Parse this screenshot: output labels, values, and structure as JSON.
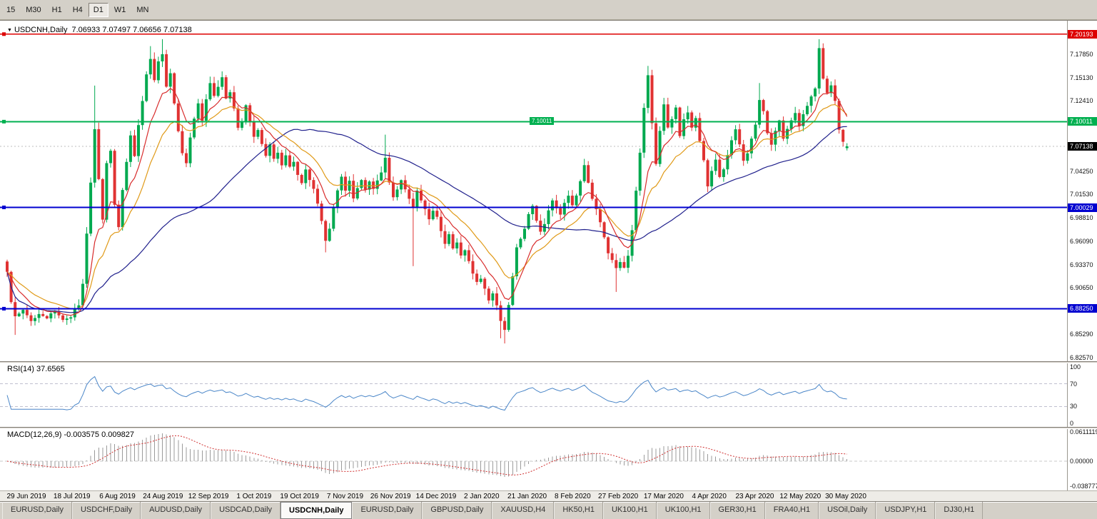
{
  "toolbar": {
    "timeframes": [
      "15",
      "M30",
      "H1",
      "H4",
      "D1",
      "W1",
      "MN"
    ],
    "active": "D1"
  },
  "chart": {
    "symbol": "USDCNH,Daily",
    "quote_line": "7.06933 7.07497 7.06656 7.07138",
    "rsi_header": "RSI(14) 37.6565",
    "macd_header": "MACD(12,26,9) -0.003575 0.009827"
  },
  "chart_data": {
    "type": "candlestick",
    "title": "USDCNH,Daily",
    "symbol": "USDCNH",
    "timeframe": "Daily",
    "ohlc_current": {
      "open": 7.06933,
      "high": 7.07497,
      "low": 7.06656,
      "close": 7.07138
    },
    "n_candles": 212,
    "price_axis": {
      "visible_top": 7.2117,
      "visible_bottom": 6.823,
      "ticks": [
        "7.17850",
        "7.15130",
        "7.12410",
        "7.04250",
        "7.01530",
        "6.98810",
        "6.96090",
        "6.93370",
        "6.90650",
        "6.85290",
        "6.82570"
      ]
    },
    "x_axis_dates": [
      "29 Jun 2019",
      "18 Jul 2019",
      "6 Aug 2019",
      "24 Aug 2019",
      "12 Sep 2019",
      "1 Oct 2019",
      "19 Oct 2019",
      "7 Nov 2019",
      "26 Nov 2019",
      "14 Dec 2019",
      "2 Jan 2020",
      "21 Jan 2020",
      "8 Feb 2020",
      "27 Feb 2020",
      "17 Mar 2020",
      "4 Apr 2020",
      "23 Apr 2020",
      "12 May 2020",
      "30 May 2020"
    ],
    "horizontal_lines": [
      {
        "price": 7.20193,
        "color": "#dd0000",
        "label": "7.20193",
        "mid_tag": false
      },
      {
        "price": 7.10011,
        "color": "#00b050",
        "label": "7.10011",
        "mid_tag": true
      },
      {
        "price": 7.00029,
        "color": "#0000d0",
        "label": "7.00029",
        "mid_tag": false
      },
      {
        "price": 6.8825,
        "color": "#0000d0",
        "label": "6.88250",
        "mid_tag": false
      }
    ],
    "current_price_tag": {
      "price": 7.07138,
      "label": "7.07138",
      "bg": "#000000"
    },
    "candle_colors": {
      "up": "#00a94f",
      "down": "#e03232"
    },
    "moving_averages": [
      {
        "type": "sma",
        "period": 52,
        "color": "#20208c",
        "name": "slow-ma"
      },
      {
        "type": "ema",
        "period": 18,
        "color": "#e09a18",
        "name": "medium-ma"
      },
      {
        "type": "ema",
        "period": 9,
        "color": "#d82c2c",
        "name": "fast-ma"
      }
    ],
    "rsi": {
      "name": "RSI",
      "period": 14,
      "value": 37.6565,
      "levels": [
        100,
        70,
        30,
        0
      ],
      "line_color": "#4a86c8"
    },
    "macd": {
      "name": "MACD",
      "fast": 12,
      "slow": 26,
      "signal": 9,
      "macd_value": -0.003575,
      "signal_value": 0.009827,
      "scale_labels": [
        "0.0611119",
        "0.00000",
        "-0.038777"
      ],
      "histogram_color": "#9b9b9b",
      "signal_color": "#d03030"
    },
    "close_waypoints": [
      [
        0,
        6.925
      ],
      [
        1,
        6.89
      ],
      [
        2,
        6.872
      ],
      [
        4,
        6.88
      ],
      [
        6,
        6.868
      ],
      [
        8,
        6.878
      ],
      [
        10,
        6.872
      ],
      [
        12,
        6.878
      ],
      [
        14,
        6.87
      ],
      [
        16,
        6.874
      ],
      [
        17,
        6.88
      ],
      [
        18,
        6.885
      ],
      [
        19,
        6.91
      ],
      [
        20,
        6.97
      ],
      [
        21,
        7.03
      ],
      [
        22,
        7.09
      ],
      [
        23,
        7.035
      ],
      [
        24,
        6.985
      ],
      [
        25,
        7.05
      ],
      [
        26,
        7.065
      ],
      [
        27,
        7.005
      ],
      [
        28,
        6.978
      ],
      [
        29,
        7.02
      ],
      [
        30,
        7.055
      ],
      [
        31,
        7.085
      ],
      [
        32,
        7.06
      ],
      [
        33,
        7.095
      ],
      [
        34,
        7.125
      ],
      [
        35,
        7.155
      ],
      [
        36,
        7.175
      ],
      [
        37,
        7.148
      ],
      [
        38,
        7.17
      ],
      [
        39,
        7.178
      ],
      [
        40,
        7.14
      ],
      [
        41,
        7.155
      ],
      [
        42,
        7.12
      ],
      [
        43,
        7.09
      ],
      [
        44,
        7.062
      ],
      [
        45,
        7.052
      ],
      [
        46,
        7.08
      ],
      [
        47,
        7.105
      ],
      [
        48,
        7.12
      ],
      [
        49,
        7.102
      ],
      [
        50,
        7.128
      ],
      [
        51,
        7.145
      ],
      [
        52,
        7.132
      ],
      [
        53,
        7.142
      ],
      [
        54,
        7.15
      ],
      [
        55,
        7.128
      ],
      [
        56,
        7.135
      ],
      [
        57,
        7.115
      ],
      [
        58,
        7.092
      ],
      [
        59,
        7.1
      ],
      [
        60,
        7.118
      ],
      [
        61,
        7.1
      ],
      [
        62,
        7.082
      ],
      [
        63,
        7.092
      ],
      [
        64,
        7.075
      ],
      [
        65,
        7.062
      ],
      [
        66,
        7.072
      ],
      [
        67,
        7.055
      ],
      [
        68,
        7.065
      ],
      [
        69,
        7.048
      ],
      [
        70,
        7.062
      ],
      [
        71,
        7.048
      ],
      [
        72,
        7.055
      ],
      [
        73,
        7.04
      ],
      [
        74,
        7.03
      ],
      [
        75,
        7.045
      ],
      [
        76,
        7.032
      ],
      [
        77,
        7.02
      ],
      [
        78,
        7.005
      ],
      [
        79,
        6.985
      ],
      [
        80,
        6.962
      ],
      [
        81,
        6.975
      ],
      [
        82,
        7.0
      ],
      [
        83,
        7.022
      ],
      [
        84,
        7.035
      ],
      [
        85,
        7.02
      ],
      [
        86,
        7.03
      ],
      [
        87,
        7.012
      ],
      [
        88,
        7.022
      ],
      [
        89,
        7.032
      ],
      [
        90,
        7.02
      ],
      [
        91,
        7.03
      ],
      [
        92,
        7.022
      ],
      [
        93,
        7.032
      ],
      [
        94,
        7.042
      ],
      [
        95,
        7.06
      ],
      [
        96,
        7.03
      ],
      [
        97,
        7.012
      ],
      [
        98,
        7.022
      ],
      [
        99,
        7.03
      ],
      [
        100,
        7.02
      ],
      [
        101,
        7.01
      ],
      [
        102,
        7.002
      ],
      [
        103,
        7.018
      ],
      [
        104,
        7.008
      ],
      [
        105,
        6.998
      ],
      [
        106,
        6.988
      ],
      [
        107,
        6.998
      ],
      [
        108,
        6.988
      ],
      [
        109,
        6.972
      ],
      [
        110,
        6.958
      ],
      [
        111,
        6.968
      ],
      [
        112,
        6.952
      ],
      [
        113,
        6.958
      ],
      [
        114,
        6.945
      ],
      [
        115,
        6.952
      ],
      [
        116,
        6.938
      ],
      [
        117,
        6.925
      ],
      [
        118,
        6.912
      ],
      [
        119,
        6.918
      ],
      [
        120,
        6.905
      ],
      [
        121,
        6.892
      ],
      [
        122,
        6.902
      ],
      [
        123,
        6.888
      ],
      [
        124,
        6.868
      ],
      [
        125,
        6.858
      ],
      [
        126,
        6.885
      ],
      [
        127,
        6.922
      ],
      [
        128,
        6.952
      ],
      [
        129,
        6.962
      ],
      [
        130,
        6.975
      ],
      [
        131,
        6.992
      ],
      [
        132,
        7.002
      ],
      [
        133,
        6.985
      ],
      [
        134,
        6.972
      ],
      [
        135,
        6.982
      ],
      [
        136,
        6.998
      ],
      [
        137,
        7.01
      ],
      [
        138,
        7.0
      ],
      [
        139,
        6.99
      ],
      [
        140,
        7.005
      ],
      [
        141,
        7.015
      ],
      [
        142,
        7.002
      ],
      [
        143,
        7.015
      ],
      [
        144,
        7.03
      ],
      [
        145,
        7.048
      ],
      [
        146,
        7.03
      ],
      [
        147,
        7.012
      ],
      [
        148,
        6.998
      ],
      [
        149,
        6.982
      ],
      [
        150,
        6.965
      ],
      [
        151,
        6.948
      ],
      [
        152,
        6.938
      ],
      [
        153,
        6.928
      ],
      [
        154,
        6.938
      ],
      [
        155,
        6.932
      ],
      [
        156,
        6.945
      ],
      [
        157,
        6.975
      ],
      [
        158,
        7.02
      ],
      [
        159,
        7.065
      ],
      [
        160,
        7.115
      ],
      [
        161,
        7.155
      ],
      [
        162,
        7.1
      ],
      [
        163,
        7.052
      ],
      [
        164,
        7.09
      ],
      [
        165,
        7.122
      ],
      [
        166,
        7.092
      ],
      [
        167,
        7.105
      ],
      [
        168,
        7.115
      ],
      [
        169,
        7.085
      ],
      [
        170,
        7.102
      ],
      [
        171,
        7.112
      ],
      [
        172,
        7.092
      ],
      [
        173,
        7.105
      ],
      [
        174,
        7.078
      ],
      [
        175,
        7.055
      ],
      [
        176,
        7.025
      ],
      [
        177,
        7.042
      ],
      [
        178,
        7.055
      ],
      [
        179,
        7.035
      ],
      [
        180,
        7.045
      ],
      [
        181,
        7.062
      ],
      [
        182,
        7.078
      ],
      [
        183,
        7.09
      ],
      [
        184,
        7.072
      ],
      [
        185,
        7.055
      ],
      [
        186,
        7.065
      ],
      [
        187,
        7.082
      ],
      [
        188,
        7.095
      ],
      [
        189,
        7.125
      ],
      [
        190,
        7.112
      ],
      [
        191,
        7.085
      ],
      [
        192,
        7.072
      ],
      [
        193,
        7.088
      ],
      [
        194,
        7.1
      ],
      [
        195,
        7.082
      ],
      [
        196,
        7.092
      ],
      [
        197,
        7.102
      ],
      [
        198,
        7.112
      ],
      [
        199,
        7.095
      ],
      [
        200,
        7.108
      ],
      [
        201,
        7.118
      ],
      [
        202,
        7.128
      ],
      [
        203,
        7.138
      ],
      [
        204,
        7.185
      ],
      [
        205,
        7.152
      ],
      [
        206,
        7.132
      ],
      [
        207,
        7.142
      ],
      [
        208,
        7.125
      ],
      [
        209,
        7.092
      ],
      [
        210,
        7.078
      ],
      [
        211,
        7.07138
      ]
    ],
    "wick_spikes": [
      {
        "i": 2,
        "l": 6.852
      },
      {
        "i": 22,
        "h": 7.142
      },
      {
        "i": 36,
        "h": 7.188
      },
      {
        "i": 39,
        "h": 7.196
      },
      {
        "i": 80,
        "l": 6.948
      },
      {
        "i": 95,
        "h": 7.085
      },
      {
        "i": 102,
        "l": 6.932
      },
      {
        "i": 124,
        "l": 6.848
      },
      {
        "i": 125,
        "l": 6.842
      },
      {
        "i": 153,
        "l": 6.902
      },
      {
        "i": 161,
        "h": 7.165
      },
      {
        "i": 189,
        "h": 7.145
      },
      {
        "i": 204,
        "h": 7.196
      }
    ]
  },
  "tabs": [
    {
      "label": "EURUSD,Daily",
      "active": false
    },
    {
      "label": "USDCHF,Daily",
      "active": false
    },
    {
      "label": "AUDUSD,Daily",
      "active": false
    },
    {
      "label": "USDCAD,Daily",
      "active": false
    },
    {
      "label": "USDCNH,Daily",
      "active": true
    },
    {
      "label": "EURUSD,Daily",
      "active": false
    },
    {
      "label": "GBPUSD,Daily",
      "active": false
    },
    {
      "label": "XAUUSD,H4",
      "active": false
    },
    {
      "label": "HK50,H1",
      "active": false
    },
    {
      "label": "UK100,H1",
      "active": false
    },
    {
      "label": "UK100,H1",
      "active": false
    },
    {
      "label": "GER30,H1",
      "active": false
    },
    {
      "label": "FRA40,H1",
      "active": false
    },
    {
      "label": "USOil,Daily",
      "active": false
    },
    {
      "label": "USDJPY,H1",
      "active": false
    },
    {
      "label": "DJ30,H1",
      "active": false
    }
  ]
}
